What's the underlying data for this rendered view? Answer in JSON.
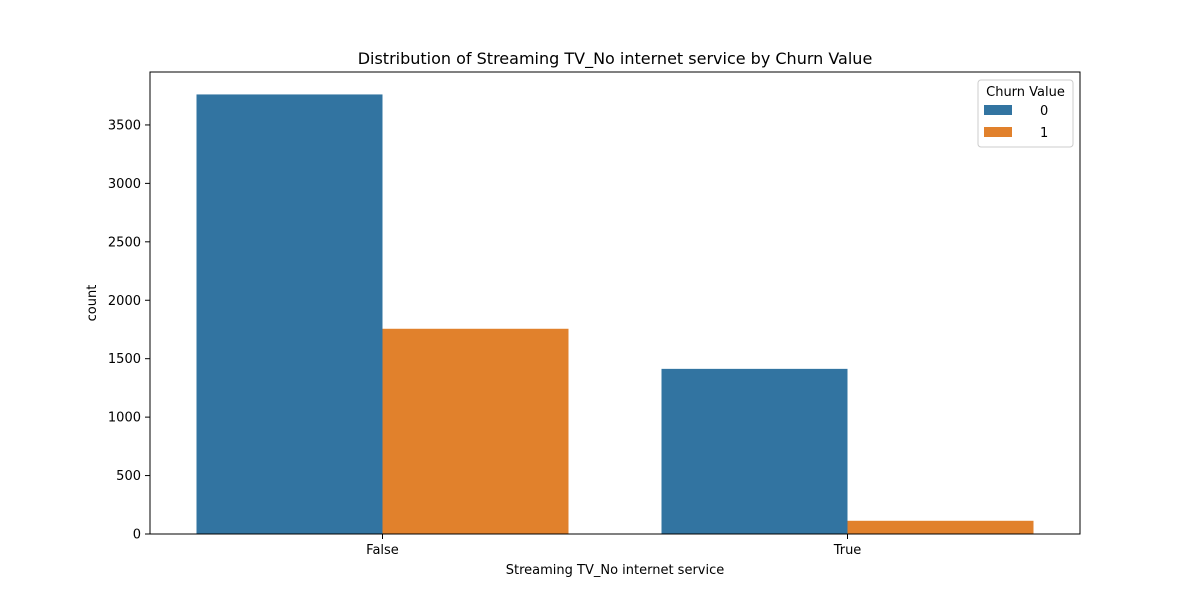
{
  "chart_data": {
    "type": "bar",
    "title": "Distribution of Streaming TV_No internet service by Churn Value",
    "xlabel": "Streaming TV_No internet service",
    "ylabel": "count",
    "categories": [
      "False",
      "True"
    ],
    "series": [
      {
        "name": "0",
        "values": [
          3761,
          1413
        ],
        "color": "#3274a1"
      },
      {
        "name": "1",
        "values": [
          1756,
          113
        ],
        "color": "#e1812c"
      }
    ],
    "ylim": [
      0,
      3953
    ],
    "yticks": [
      0,
      500,
      1000,
      1500,
      2000,
      2500,
      3000,
      3500
    ],
    "legend": {
      "title": "Churn Value",
      "position": "top-right"
    },
    "grid": false
  }
}
